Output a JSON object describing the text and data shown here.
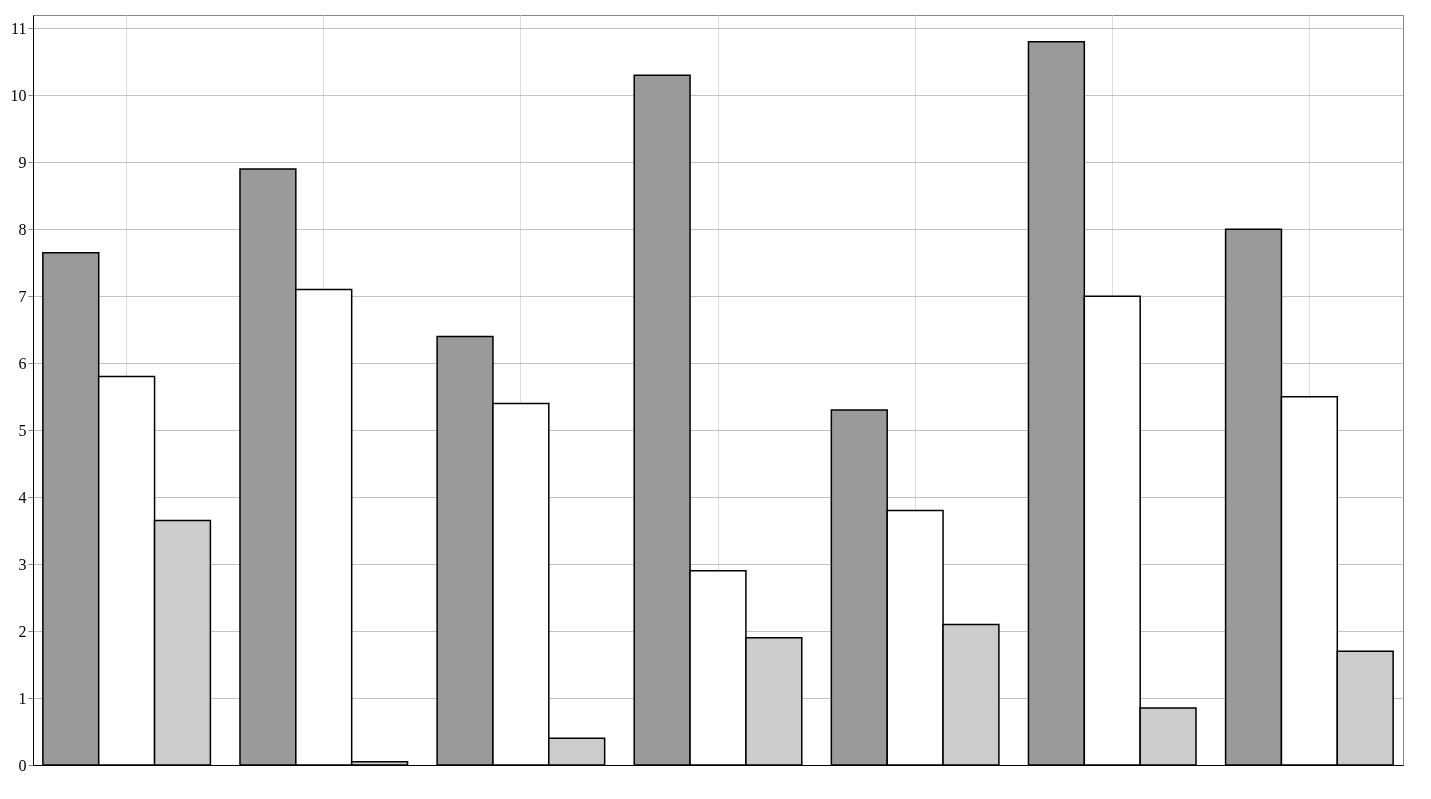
{
  "chart_data": {
    "type": "bar",
    "categories": [
      null,
      null,
      null,
      null,
      null,
      null,
      null
    ],
    "series": [
      {
        "color": "#9a9a9a",
        "values": [
          7.65,
          8.9,
          6.4,
          10.3,
          5.3,
          10.8,
          8.0
        ]
      },
      {
        "color": "#ffffff",
        "values": [
          5.8,
          7.1,
          5.4,
          2.9,
          3.8,
          7.0,
          5.5
        ]
      },
      {
        "color": "#cccccc",
        "values": [
          3.65,
          0.05,
          0.4,
          1.9,
          2.1,
          0.85,
          1.7
        ]
      }
    ],
    "ylim": [
      0,
      11.2
    ],
    "yticks": [
      0,
      1,
      2,
      3,
      4,
      5,
      6,
      7,
      8,
      9,
      10,
      11
    ],
    "grid": true,
    "tick_labels": "y"
  }
}
